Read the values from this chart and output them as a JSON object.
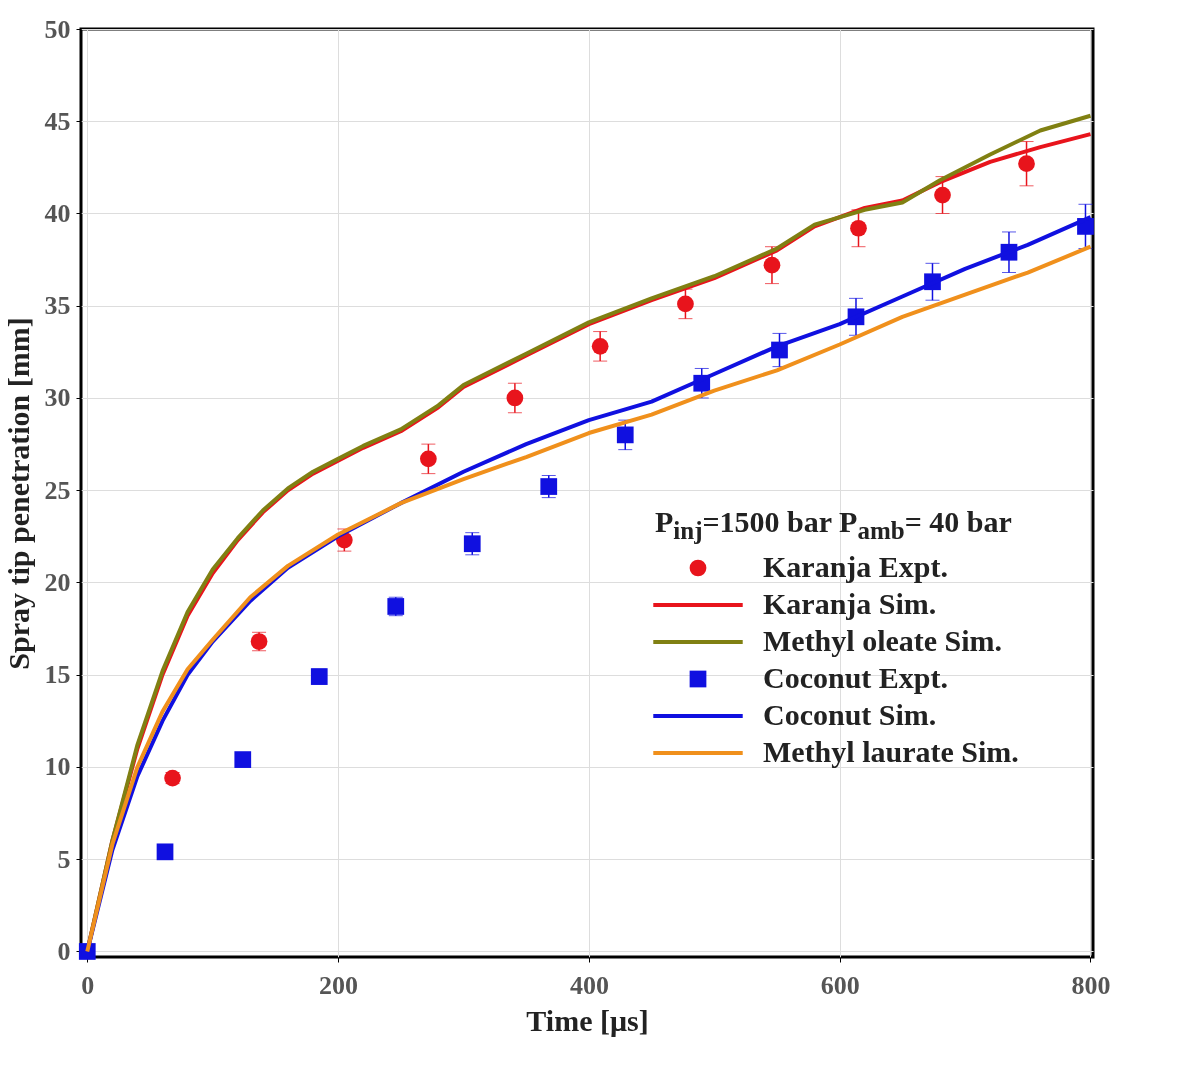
{
  "chart_data": {
    "type": "scatter",
    "xlabel": "Time [μs]",
    "ylabel": "Spray tip penetration [mm]",
    "legend_title": "P$_{inj}$=1500 bar P$_{amb}$= 40 bar",
    "xlim": [
      -5,
      802
    ],
    "ylim": [
      -0.3,
      50
    ],
    "xticks": [
      0,
      200,
      400,
      600,
      800
    ],
    "yticks": [
      0,
      5,
      10,
      15,
      20,
      25,
      30,
      35,
      40,
      45,
      50
    ],
    "grid": true,
    "legend": "right",
    "series": [
      {
        "name": "Karanja Expt.",
        "marker": "circle",
        "color": "#e8141c",
        "x": [
          68,
          137,
          205,
          272,
          341,
          409,
          477,
          546,
          615,
          682,
          749
        ],
        "values": [
          9.4,
          16.8,
          22.3,
          26.7,
          30.0,
          32.8,
          35.1,
          37.2,
          39.2,
          41.0,
          42.7
        ],
        "errors": [
          0.3,
          0.5,
          0.6,
          0.8,
          0.8,
          0.8,
          0.8,
          1.0,
          1.0,
          1.0,
          1.2
        ]
      },
      {
        "name": "Karanja Sim.",
        "type": "line",
        "line_style": "solid",
        "color": "#e8141c",
        "x": [
          0,
          20,
          40,
          60,
          80,
          100,
          120,
          140,
          160,
          180,
          200,
          220,
          250,
          280,
          300,
          350,
          400,
          450,
          500,
          550,
          580,
          620,
          650,
          680,
          720,
          760,
          800
        ],
        "values": [
          0,
          6,
          11,
          15,
          18.2,
          20.5,
          22.3,
          23.8,
          25,
          25.9,
          26.6,
          27.3,
          28.2,
          29.5,
          30.6,
          32.3,
          34,
          35.3,
          36.5,
          38,
          39.3,
          40.3,
          40.7,
          41.7,
          42.8,
          43.6,
          44.3
        ]
      },
      {
        "name": "Methyl oleate Sim.",
        "type": "line",
        "line_style": "solid",
        "color": "#808012",
        "x": [
          0,
          20,
          40,
          60,
          80,
          100,
          120,
          140,
          160,
          180,
          200,
          220,
          250,
          280,
          300,
          350,
          400,
          450,
          500,
          550,
          580,
          620,
          650,
          680,
          720,
          760,
          800
        ],
        "values": [
          0,
          6,
          11.2,
          15.2,
          18.4,
          20.7,
          22.4,
          23.9,
          25.1,
          26,
          26.7,
          27.4,
          28.3,
          29.6,
          30.7,
          32.4,
          34.1,
          35.4,
          36.6,
          38.1,
          39.4,
          40.2,
          40.6,
          41.8,
          43.2,
          44.5,
          45.3
        ]
      },
      {
        "name": "Coconut Expt.",
        "marker": "square",
        "color": "#1010e0",
        "x": [
          0,
          62,
          124,
          185,
          246,
          307,
          368,
          429,
          490,
          552,
          613,
          674,
          735,
          796
        ],
        "values": [
          0,
          5.4,
          10.4,
          14.9,
          18.7,
          22.1,
          25.2,
          28.0,
          30.8,
          32.6,
          34.4,
          36.3,
          37.9,
          39.3
        ],
        "errors": [
          null,
          0.3,
          0.3,
          0.4,
          0.5,
          0.6,
          0.6,
          0.8,
          0.8,
          0.9,
          1.0,
          1.0,
          1.1,
          1.2
        ]
      },
      {
        "name": "Coconut Sim.",
        "type": "line",
        "line_style": "solid",
        "color": "#1010e0",
        "x": [
          0,
          20,
          40,
          60,
          80,
          100,
          130,
          160,
          200,
          250,
          300,
          350,
          400,
          450,
          500,
          550,
          600,
          650,
          700,
          750,
          800
        ],
        "values": [
          0,
          5.5,
          9.5,
          12.5,
          15,
          16.8,
          19,
          20.8,
          22.5,
          24.3,
          26,
          27.5,
          28.8,
          29.8,
          31.3,
          32.8,
          34,
          35.5,
          37,
          38.3,
          39.8
        ]
      },
      {
        "name": "Methyl laurate Sim.",
        "type": "line",
        "line_style": "solid",
        "color": "#f0901c",
        "x": [
          0,
          20,
          40,
          60,
          80,
          100,
          130,
          160,
          200,
          250,
          300,
          350,
          400,
          450,
          500,
          550,
          600,
          650,
          700,
          750,
          800
        ],
        "values": [
          0,
          5.8,
          10,
          13,
          15.3,
          16.9,
          19.2,
          20.9,
          22.6,
          24.3,
          25.6,
          26.8,
          28.1,
          29.1,
          30.4,
          31.5,
          32.9,
          34.4,
          35.6,
          36.8,
          38.2
        ]
      }
    ]
  }
}
